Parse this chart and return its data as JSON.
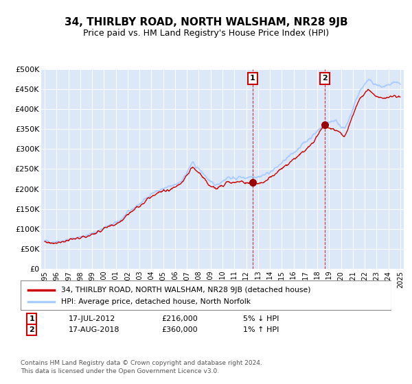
{
  "title": "34, THIRLBY ROAD, NORTH WALSHAM, NR28 9JB",
  "subtitle": "Price paid vs. HM Land Registry's House Price Index (HPI)",
  "ylim": [
    0,
    500000
  ],
  "yticks": [
    0,
    50000,
    100000,
    150000,
    200000,
    250000,
    300000,
    350000,
    400000,
    450000,
    500000
  ],
  "ytick_labels": [
    "£0",
    "£50K",
    "£100K",
    "£150K",
    "£200K",
    "£250K",
    "£300K",
    "£350K",
    "£400K",
    "£450K",
    "£500K"
  ],
  "xlim_start": 1994.7,
  "xlim_end": 2025.3,
  "xticks": [
    1995,
    1996,
    1997,
    1998,
    1999,
    2000,
    2001,
    2002,
    2003,
    2004,
    2005,
    2006,
    2007,
    2008,
    2009,
    2010,
    2011,
    2012,
    2013,
    2014,
    2015,
    2016,
    2017,
    2018,
    2019,
    2020,
    2021,
    2022,
    2023,
    2024,
    2025
  ],
  "hpi_color": "#aaccff",
  "price_color": "#cc0000",
  "marker_color": "#990000",
  "sale1_x": 2012.54,
  "sale1_y": 216000,
  "sale2_x": 2018.63,
  "sale2_y": 360000,
  "sale1_label": "1",
  "sale2_label": "2",
  "legend_house_label": "34, THIRLBY ROAD, NORTH WALSHAM, NR28 9JB (detached house)",
  "legend_hpi_label": "HPI: Average price, detached house, North Norfolk",
  "annotation1_num": "1",
  "annotation1_date": "17-JUL-2012",
  "annotation1_price": "£216,000",
  "annotation1_hpi": "5% ↓ HPI",
  "annotation2_num": "2",
  "annotation2_date": "17-AUG-2018",
  "annotation2_price": "£360,000",
  "annotation2_hpi": "1% ↑ HPI",
  "footer": "Contains HM Land Registry data © Crown copyright and database right 2024.\nThis data is licensed under the Open Government Licence v3.0.",
  "background_color": "#ffffff",
  "plot_background": "#dce8f8",
  "grid_color": "#ffffff",
  "title_fontsize": 11,
  "subtitle_fontsize": 9
}
